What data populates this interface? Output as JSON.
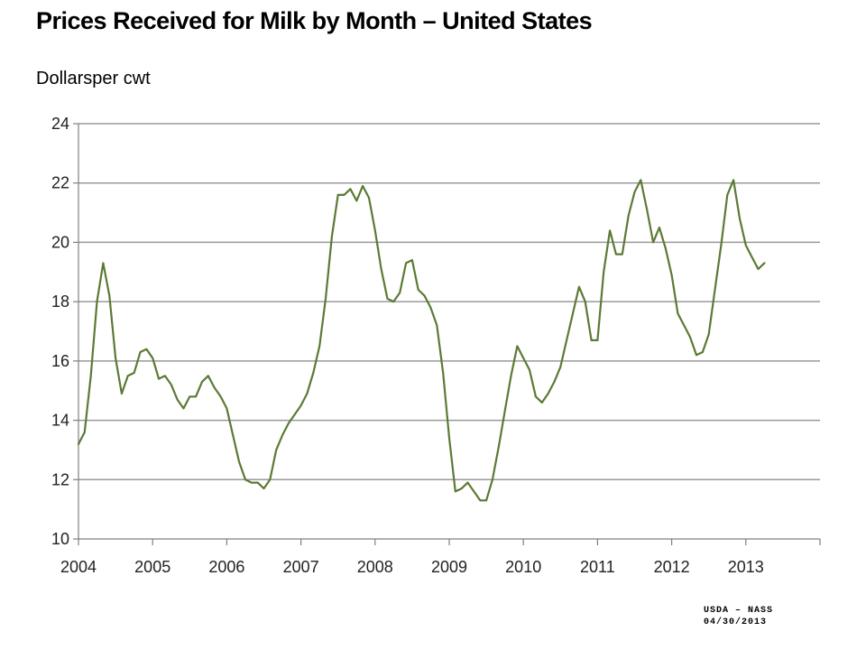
{
  "title": "Prices Received for Milk by Month – United States",
  "y_unit_label": "Dollarsper cwt",
  "source": {
    "line1": "USDA – NASS",
    "line2": "04/30/2013"
  },
  "colors": {
    "line": "#5b7a34",
    "grid": "#9a9a9a",
    "axis": "#808080"
  },
  "chart_data": {
    "type": "line",
    "title": "Prices Received for Milk by Month – United States",
    "xlabel": "",
    "ylabel": "Dollarsper cwt",
    "ylim": [
      10,
      24
    ],
    "xlim": [
      2004,
      2014
    ],
    "yticks": [
      10,
      12,
      14,
      16,
      18,
      20,
      22,
      24
    ],
    "xticks": [
      "2004",
      "2005",
      "2006",
      "2007",
      "2008",
      "2009",
      "2010",
      "2011",
      "2012",
      "2013"
    ],
    "grid": true,
    "legend": "none",
    "series": [
      {
        "x": [
          "2004-01",
          "2004-02",
          "2004-03",
          "2004-04",
          "2004-05",
          "2004-06",
          "2004-07",
          "2004-08",
          "2004-09",
          "2004-10",
          "2004-11",
          "2004-12",
          "2005-01",
          "2005-02",
          "2005-03",
          "2005-04",
          "2005-05",
          "2005-06",
          "2005-07",
          "2005-08",
          "2005-09",
          "2005-10",
          "2005-11",
          "2005-12",
          "2006-01",
          "2006-02",
          "2006-03",
          "2006-04",
          "2006-05",
          "2006-06",
          "2006-07",
          "2006-08",
          "2006-09",
          "2006-10",
          "2006-11",
          "2006-12",
          "2007-01",
          "2007-02",
          "2007-03",
          "2007-04",
          "2007-05",
          "2007-06",
          "2007-07",
          "2007-08",
          "2007-09",
          "2007-10",
          "2007-11",
          "2007-12",
          "2008-01",
          "2008-02",
          "2008-03",
          "2008-04",
          "2008-05",
          "2008-06",
          "2008-07",
          "2008-08",
          "2008-09",
          "2008-10",
          "2008-11",
          "2008-12",
          "2009-01",
          "2009-02",
          "2009-03",
          "2009-04",
          "2009-05",
          "2009-06",
          "2009-07",
          "2009-08",
          "2009-09",
          "2009-10",
          "2009-11",
          "2009-12",
          "2010-01",
          "2010-02",
          "2010-03",
          "2010-04",
          "2010-05",
          "2010-06",
          "2010-07",
          "2010-08",
          "2010-09",
          "2010-10",
          "2010-11",
          "2010-12",
          "2011-01",
          "2011-02",
          "2011-03",
          "2011-04",
          "2011-05",
          "2011-06",
          "2011-07",
          "2011-08",
          "2011-09",
          "2011-10",
          "2011-11",
          "2011-12",
          "2012-01",
          "2012-02",
          "2012-03",
          "2012-04",
          "2012-05",
          "2012-06",
          "2012-07",
          "2012-08",
          "2012-09",
          "2012-10",
          "2012-11",
          "2012-12",
          "2013-01",
          "2013-02",
          "2013-03",
          "2013-04"
        ],
        "values": [
          13.2,
          13.6,
          15.5,
          18.0,
          19.3,
          18.2,
          16.1,
          14.9,
          15.5,
          15.6,
          16.3,
          16.4,
          16.1,
          15.4,
          15.5,
          15.2,
          14.7,
          14.4,
          14.8,
          14.8,
          15.3,
          15.5,
          15.1,
          14.8,
          14.4,
          13.5,
          12.6,
          12.0,
          11.9,
          11.9,
          11.7,
          12.0,
          13.0,
          13.5,
          13.9,
          14.2,
          14.5,
          14.9,
          15.6,
          16.5,
          18.1,
          20.2,
          21.6,
          21.6,
          21.8,
          21.4,
          21.9,
          21.5,
          20.4,
          19.1,
          18.1,
          18.0,
          18.3,
          19.3,
          19.4,
          18.4,
          18.2,
          17.8,
          17.2,
          15.6,
          13.4,
          11.6,
          11.7,
          11.9,
          11.6,
          11.3,
          11.3,
          12.0,
          13.1,
          14.3,
          15.5,
          16.5,
          16.1,
          15.7,
          14.8,
          14.6,
          14.9,
          15.3,
          15.8,
          16.7,
          17.6,
          18.5,
          18.0,
          16.7,
          16.7,
          19.0,
          20.4,
          19.6,
          19.6,
          20.9,
          21.7,
          22.1,
          21.1,
          20.0,
          20.5,
          19.8,
          18.9,
          17.6,
          17.2,
          16.8,
          16.2,
          16.3,
          16.9,
          18.4,
          19.9,
          21.6,
          22.1,
          20.8,
          19.9,
          19.5,
          19.1,
          19.3
        ]
      }
    ]
  }
}
